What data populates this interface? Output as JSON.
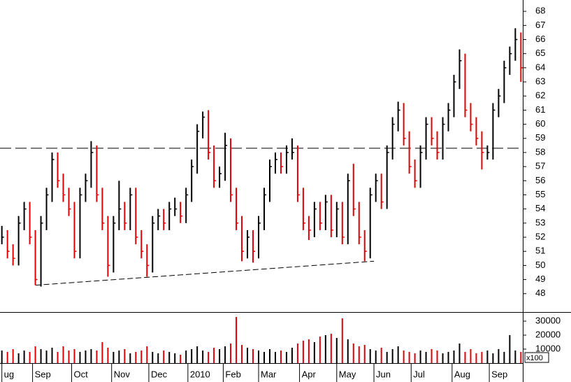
{
  "chart_data": {
    "type": "ohlc",
    "x": [
      0,
      3,
      6,
      9,
      12,
      15,
      18,
      21,
      24,
      27,
      30,
      33,
      36,
      39,
      42,
      45,
      48,
      51,
      54,
      57,
      60,
      63,
      66,
      69,
      72,
      75,
      78,
      81,
      84,
      87,
      90,
      93,
      96,
      99,
      102,
      105,
      108,
      111,
      114,
      117,
      120,
      123,
      126,
      129,
      132,
      135,
      138,
      141,
      144,
      147,
      150,
      153,
      156,
      159,
      162,
      165,
      168,
      171,
      174,
      177,
      180,
      183,
      186,
      189,
      192,
      195,
      198,
      201,
      204,
      207,
      210,
      213,
      216,
      219,
      222,
      225,
      228,
      231,
      234,
      237,
      240,
      243,
      246,
      249,
      252,
      255,
      258,
      261,
      264,
      267,
      270,
      273,
      276,
      279
    ],
    "high": [
      52.8,
      52.5,
      51.5,
      53.5,
      54.5,
      54.5,
      52.5,
      53.5,
      55.5,
      58,
      58,
      56.5,
      55.5,
      54.5,
      55.5,
      56.5,
      58.8,
      58.5,
      55.5,
      53.5,
      53.5,
      56,
      54.5,
      55.5,
      55.5,
      52.5,
      51.5,
      53.5,
      54,
      54,
      54.5,
      54.8,
      54.5,
      55.5,
      57.5,
      60,
      60.9,
      61,
      58.5,
      57,
      59.4,
      59,
      55.5,
      53.5,
      52.5,
      52.5,
      53.5,
      55.5,
      57.5,
      58,
      58,
      58.5,
      59,
      58.5,
      55.5,
      53.5,
      54.5,
      54.5,
      55,
      55,
      54.5,
      54.5,
      56.5,
      57.2,
      54.5,
      52.5,
      55.5,
      56.5,
      56.5,
      58.5,
      60.5,
      61.6,
      61.5,
      59.5,
      57.5,
      58.5,
      60.5,
      60.5,
      59.5,
      60.5,
      61.5,
      63.5,
      65.3,
      65,
      61.5,
      60.5,
      59.5,
      58.5,
      61.5,
      62.5,
      64.5,
      65.5,
      66.8,
      66.5
    ],
    "low": [
      51.5,
      50.5,
      50,
      50,
      52.5,
      51.5,
      48.6,
      48.5,
      52.5,
      54.5,
      55.5,
      54.5,
      53.5,
      50.5,
      50.5,
      54.5,
      55.5,
      54.5,
      52.5,
      49.2,
      49.5,
      52.5,
      52.5,
      52.5,
      51.5,
      50.5,
      49.2,
      49.5,
      52.5,
      52.5,
      52.5,
      53.5,
      53,
      53,
      54.5,
      56.5,
      59,
      57.5,
      55.5,
      55.5,
      56,
      54.5,
      52.5,
      50.3,
      50.5,
      50.2,
      50.5,
      52.5,
      54.5,
      56.5,
      56.5,
      56.5,
      57.5,
      54.5,
      52.5,
      51.8,
      52,
      52.5,
      52.5,
      52,
      52,
      51.5,
      51.5,
      53.5,
      51.5,
      50.3,
      50.5,
      54.5,
      54,
      54,
      57.5,
      59.5,
      58.5,
      56.5,
      55.5,
      55.5,
      57.5,
      58.5,
      57.5,
      57.5,
      59.5,
      60.5,
      62.5,
      60.5,
      59.5,
      58.5,
      56.8,
      57.5,
      57.5,
      60.5,
      61.5,
      63.5,
      64.5,
      63
    ],
    "close": [
      52,
      51,
      50.5,
      53,
      54,
      52,
      49,
      53,
      55,
      57.5,
      56,
      55,
      54,
      51,
      55,
      56,
      58,
      55,
      53,
      50,
      53,
      54,
      53,
      55,
      52,
      51,
      50,
      53,
      53.5,
      53,
      54,
      54,
      53.5,
      55,
      57,
      59.5,
      60.5,
      58,
      56,
      56.5,
      58.5,
      55,
      53,
      51,
      52,
      51,
      53,
      55,
      57,
      57.5,
      57,
      58,
      58,
      55,
      53,
      52.5,
      54,
      53,
      54.5,
      52.5,
      54,
      52,
      56,
      54,
      52,
      51,
      55,
      56,
      54.5,
      58,
      60,
      61,
      59,
      57,
      56,
      58,
      60,
      59,
      58,
      60,
      61,
      63,
      64.5,
      61,
      60,
      59,
      58,
      58,
      61,
      62,
      64,
      65,
      66,
      64
    ],
    "up_color": "#000000",
    "down_color": "#e00000",
    "xlim": [
      -1,
      280
    ],
    "xticks": [
      {
        "value": 0,
        "label": "ug"
      },
      {
        "value": 16.5,
        "label": "Sep"
      },
      {
        "value": 37.5,
        "label": "Oct"
      },
      {
        "value": 59,
        "label": "Nov"
      },
      {
        "value": 79,
        "label": "Dec"
      },
      {
        "value": 100,
        "label": "2010"
      },
      {
        "value": 119,
        "label": "Feb"
      },
      {
        "value": 138,
        "label": "Mar"
      },
      {
        "value": 160,
        "label": "Apr"
      },
      {
        "value": 180,
        "label": "May"
      },
      {
        "value": 200,
        "label": "Jun"
      },
      {
        "value": 220,
        "label": "Jul"
      },
      {
        "value": 242,
        "label": "Aug"
      },
      {
        "value": 262,
        "label": "Sep"
      }
    ],
    "ylim": [
      46.7,
      68.8
    ],
    "yticks": [
      48,
      49,
      50,
      51,
      52,
      53,
      54,
      55,
      56,
      57,
      58,
      59,
      60,
      61,
      62,
      63,
      64,
      65,
      66,
      67,
      68
    ],
    "volume": {
      "values": [
        9000,
        8000,
        10000,
        7000,
        9000,
        8000,
        12000,
        10000,
        9000,
        11000,
        8000,
        12000,
        9000,
        10000,
        8000,
        9000,
        10000,
        9000,
        15000,
        11000,
        8000,
        9000,
        10000,
        7000,
        8000,
        9000,
        12000,
        8000,
        7000,
        9000,
        8000,
        7000,
        6000,
        9000,
        10000,
        12000,
        9000,
        8000,
        11000,
        10000,
        12000,
        14000,
        33000,
        13000,
        11000,
        10000,
        9000,
        8000,
        10000,
        8000,
        9000,
        8000,
        11000,
        14000,
        16000,
        17000,
        15000,
        19000,
        20000,
        21000,
        18000,
        32000,
        17000,
        14000,
        12000,
        13000,
        10000,
        9000,
        11000,
        8000,
        10000,
        12000,
        9000,
        8000,
        7000,
        9000,
        8000,
        10000,
        9000,
        7000,
        8000,
        9000,
        14000,
        8000,
        10000,
        7000,
        8000,
        9000,
        7000,
        10000,
        8000,
        20000,
        9000,
        8000
      ],
      "ylim": [
        0,
        36000
      ],
      "yticks": [
        10000,
        20000,
        30000
      ],
      "unit": "x100"
    },
    "hline": {
      "value": 58.3,
      "color": "#000000"
    },
    "trendline": {
      "x": [
        18,
        200
      ],
      "y": [
        48.6,
        50.3
      ],
      "color": "#000000"
    }
  }
}
